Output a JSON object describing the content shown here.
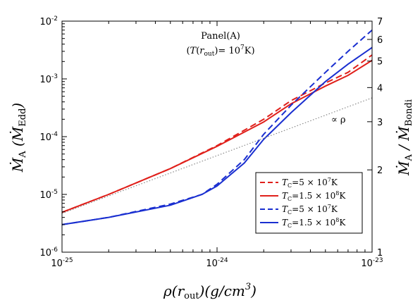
{
  "chart_data": {
    "type": "line",
    "title": "",
    "annotation_title": "Panel(A)",
    "annotation_subtitle": "(T(r_out)= 10^7K)",
    "xlabel": "ρ(r_out)(g/cm^3)",
    "ylabel": "Ṁ_A (Ṁ_Edd)",
    "y2label": "Ṁ_A / Ṁ_Bondi",
    "xscale": "log",
    "yscale": "log",
    "y2scale": "log",
    "xlim": [
      1e-25,
      1e-23
    ],
    "ylim": [
      1e-06,
      0.01
    ],
    "y2lim": [
      1,
      7
    ],
    "x_ticks": [
      {
        "base": "10",
        "exp": "-25"
      },
      {
        "base": "10",
        "exp": "-24"
      },
      {
        "base": "10",
        "exp": "-23"
      }
    ],
    "y_ticks": [
      {
        "base": "10",
        "exp": "-6"
      },
      {
        "base": "10",
        "exp": "-5"
      },
      {
        "base": "10",
        "exp": "-4"
      },
      {
        "base": "10",
        "exp": "-3"
      },
      {
        "base": "10",
        "exp": "-2"
      }
    ],
    "y2_ticks": [
      "1",
      "2",
      "3",
      "4",
      "5",
      "6",
      "7"
    ],
    "grid": false,
    "legend_position": "bottom-right",
    "proportional_label": "∝ ρ",
    "series": [
      {
        "name": "T_C=5×10^7K",
        "legend_main": "T",
        "legend_sub": "C",
        "legend_value": "=5 × 10",
        "legend_exp": "7",
        "legend_unit": "K",
        "color": "#e0201b",
        "style": "dashed",
        "x": [
          1e-25,
          2e-25,
          5e-25,
          1e-24,
          2e-24,
          3e-24,
          5e-24,
          7e-24,
          1e-23
        ],
        "y": [
          4.9e-06,
          1e-05,
          2.8e-05,
          7e-05,
          0.0002,
          0.00042,
          0.00085,
          0.0013,
          0.0026
        ]
      },
      {
        "name": "T_C=1.5×10^8K",
        "legend_main": "T",
        "legend_sub": "C",
        "legend_value": "=1.5 × 10",
        "legend_exp": "8",
        "legend_unit": "K",
        "color": "#e0201b",
        "style": "solid",
        "x": [
          1e-25,
          2e-25,
          5e-25,
          1e-24,
          2e-24,
          3e-24,
          5e-24,
          7e-24,
          1e-23
        ],
        "y": [
          4.9e-06,
          1e-05,
          2.8e-05,
          6.8e-05,
          0.00018,
          0.00037,
          0.00075,
          0.00115,
          0.0021
        ]
      },
      {
        "name": "T_C=5×10^7K",
        "legend_main": "T",
        "legend_sub": "C",
        "legend_value": "=5 × 10",
        "legend_exp": "7",
        "legend_unit": "K",
        "color": "#1a2fd0",
        "style": "dashed",
        "x": [
          1e-25,
          2e-25,
          5e-25,
          8e-25,
          1e-24,
          1.5e-24,
          2e-24,
          3e-24,
          5e-24,
          7e-24,
          1e-23
        ],
        "y": [
          3e-06,
          4e-06,
          6.8e-06,
          1e-05,
          1.5e-05,
          4e-05,
          0.00011,
          0.00035,
          0.0013,
          0.003,
          0.007
        ]
      },
      {
        "name": "T_C=1.5×10^8K",
        "legend_main": "T",
        "legend_sub": "C",
        "legend_value": "=1.5 × 10",
        "legend_exp": "8",
        "legend_unit": "K",
        "color": "#1a2fd0",
        "style": "solid",
        "x": [
          1e-25,
          2e-25,
          5e-25,
          8e-25,
          1e-24,
          1.5e-24,
          2e-24,
          3e-24,
          5e-24,
          7e-24,
          1e-23
        ],
        "y": [
          3e-06,
          4e-06,
          6.5e-06,
          1e-05,
          1.4e-05,
          3.5e-05,
          9e-05,
          0.00026,
          0.0009,
          0.0018,
          0.0035
        ]
      },
      {
        "name": "",
        "color": "#808080",
        "style": "dotted",
        "x": [
          1e-25,
          1e-23
        ],
        "y": [
          4.7e-06,
          0.00047
        ]
      }
    ]
  }
}
